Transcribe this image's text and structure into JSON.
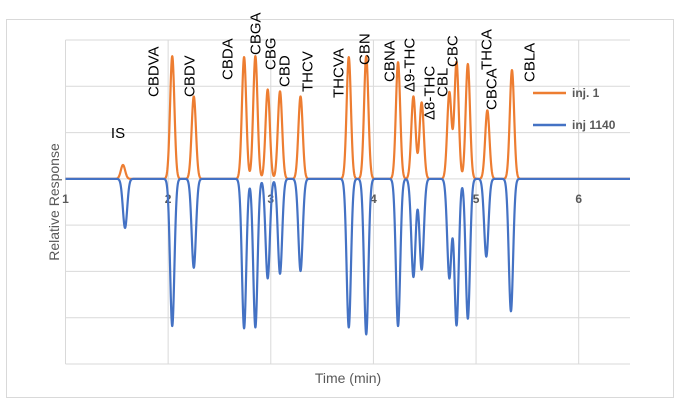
{
  "chart_data": {
    "type": "line",
    "title": "",
    "xlabel": "Time (min)",
    "ylabel": "Relative Response",
    "xlim": [
      1,
      6.5
    ],
    "ylim": [
      -4,
      3
    ],
    "x_ticks": [
      "1",
      "2",
      "3",
      "4",
      "5",
      "6"
    ],
    "y_ticks_labeled": false,
    "grid": true,
    "legend_position": "right",
    "series": [
      {
        "name": "inj. 1",
        "color": "#ED7D31",
        "direction": "up",
        "peaks": [
          {
            "label": "IS",
            "time": 1.56,
            "height": 0.3
          },
          {
            "label": "CBDVA",
            "time": 2.04,
            "height": 2.65
          },
          {
            "label": "CBDV",
            "time": 2.25,
            "height": 1.78
          },
          {
            "label": "CBDA",
            "time": 2.74,
            "height": 2.63
          },
          {
            "label": "CBGA",
            "time": 2.85,
            "height": 2.65
          },
          {
            "label": "CBG",
            "time": 2.97,
            "height": 1.93
          },
          {
            "label": "CBD",
            "time": 3.09,
            "height": 1.89
          },
          {
            "label": "THCV",
            "time": 3.29,
            "height": 1.78
          },
          {
            "label": "THCVA",
            "time": 3.76,
            "height": 2.63
          },
          {
            "label": "CBN",
            "time": 3.93,
            "height": 2.65
          },
          {
            "label": "CBNA",
            "time": 4.24,
            "height": 2.52
          },
          {
            "label": "Δ9-THC",
            "time": 4.39,
            "height": 1.78
          },
          {
            "label": "Δ8-THC",
            "time": 4.47,
            "height": 1.65
          },
          {
            "label": "CBL",
            "time": 4.74,
            "height": 1.87
          },
          {
            "label": "CBC",
            "time": 4.81,
            "height": 2.52
          },
          {
            "label": "THCA",
            "time": 4.92,
            "height": 2.48
          },
          {
            "label": "CBCA",
            "time": 5.11,
            "height": 1.48
          },
          {
            "label": "CBLA",
            "time": 5.35,
            "height": 2.35
          }
        ]
      },
      {
        "name": "inj 1140",
        "color": "#4472C4",
        "direction": "down",
        "peaks": [
          {
            "label": "IS",
            "time": 1.58,
            "height": -1.06
          },
          {
            "label": "CBDVA",
            "time": 2.04,
            "height": -3.18
          },
          {
            "label": "CBDV",
            "time": 2.25,
            "height": -1.92
          },
          {
            "label": "CBDA",
            "time": 2.74,
            "height": -3.23
          },
          {
            "label": "CBGA",
            "time": 2.85,
            "height": -3.21
          },
          {
            "label": "CBG",
            "time": 2.97,
            "height": -2.15
          },
          {
            "label": "CBD",
            "time": 3.09,
            "height": -2.05
          },
          {
            "label": "THCV",
            "time": 3.29,
            "height": -1.99
          },
          {
            "label": "THCVA",
            "time": 3.76,
            "height": -3.21
          },
          {
            "label": "CBN",
            "time": 3.93,
            "height": -3.36
          },
          {
            "label": "CBNA",
            "time": 4.24,
            "height": -3.18
          },
          {
            "label": "Δ9-THC",
            "time": 4.39,
            "height": -2.12
          },
          {
            "label": "Δ8-THC",
            "time": 4.47,
            "height": -1.96
          },
          {
            "label": "CBL",
            "time": 4.74,
            "height": -2.14
          },
          {
            "label": "CBC",
            "time": 4.81,
            "height": -3.16
          },
          {
            "label": "THCA",
            "time": 4.92,
            "height": -3.02
          },
          {
            "label": "CBCA",
            "time": 5.1,
            "height": -1.68
          },
          {
            "label": "CBLA",
            "time": 5.34,
            "height": -2.86
          }
        ]
      }
    ],
    "annotations": [
      "IS",
      "CBDVA",
      "CBDV",
      "CBDA",
      "CBGA",
      "CBG",
      "CBD",
      "THCV",
      "THCVA",
      "CBN",
      "CBNA",
      "Δ9-THC",
      "Δ8-THC",
      "CBL",
      "CBC",
      "THCA",
      "CBCA",
      "CBLA"
    ]
  }
}
